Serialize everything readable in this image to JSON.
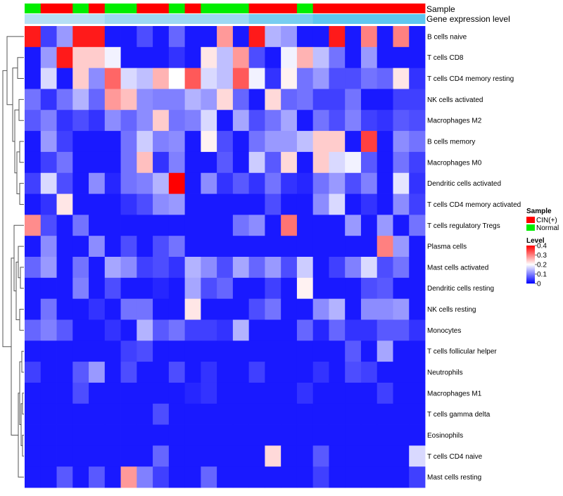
{
  "chart_data": {
    "type": "heatmap",
    "title": "",
    "annotation_tracks": [
      {
        "key": "sample",
        "label": "Sample"
      },
      {
        "key": "level",
        "label": "Gene expression level"
      }
    ],
    "sample_groups": [
      "N",
      "C",
      "C",
      "N",
      "C",
      "N",
      "N",
      "C",
      "C",
      "N",
      "C",
      "N",
      "N",
      "N",
      "C",
      "C",
      "C",
      "N",
      "C",
      "C",
      "C",
      "C",
      "C",
      "C",
      "C"
    ],
    "rows": [
      "B cells naive",
      "T cells CD8",
      "T cells CD4 memory resting",
      "NK cells activated",
      "Macrophages M2",
      "B cells memory",
      "Macrophages M0",
      "Dendritic cells activated",
      "T cells CD4 memory activated",
      "T cells regulatory  Tregs",
      "Plasma cells",
      "Mast cells activated",
      "Dendritic cells resting",
      "NK cells resting",
      "Monocytes",
      "T cells follicular helper",
      "Neutrophils",
      "Macrophages M1",
      "T cells gamma delta",
      "Eosinophils",
      "T cells CD4 naive",
      "Mast cells resting"
    ],
    "values": [
      [
        0.38,
        0.05,
        0.12,
        0.38,
        0.38,
        0.02,
        0.02,
        0.06,
        0.02,
        0.08,
        0.02,
        0.02,
        0.28,
        0.02,
        0.38,
        0.14,
        0.12,
        0.02,
        0.02,
        0.38,
        0.02,
        0.3,
        0.02,
        0.3,
        0.02
      ],
      [
        0.02,
        0.12,
        0.38,
        0.24,
        0.24,
        0.19,
        0.02,
        0.02,
        0.02,
        0.04,
        0.02,
        0.22,
        0.15,
        0.28,
        0.06,
        0.02,
        0.19,
        0.26,
        0.15,
        0.09,
        0.02,
        0.12,
        0.02,
        0.02,
        0.02
      ],
      [
        0.02,
        0.17,
        0.02,
        0.24,
        0.11,
        0.32,
        0.17,
        0.15,
        0.26,
        0.2,
        0.33,
        0.17,
        0.15,
        0.33,
        0.19,
        0.04,
        0.21,
        0.09,
        0.12,
        0.06,
        0.06,
        0.09,
        0.08,
        0.22,
        0.04
      ],
      [
        0.09,
        0.04,
        0.09,
        0.14,
        0.08,
        0.28,
        0.25,
        0.11,
        0.1,
        0.1,
        0.14,
        0.12,
        0.23,
        0.08,
        0.02,
        0.23,
        0.08,
        0.09,
        0.05,
        0.05,
        0.09,
        0.02,
        0.02,
        0.05,
        0.05
      ],
      [
        0.07,
        0.1,
        0.04,
        0.06,
        0.04,
        0.11,
        0.08,
        0.11,
        0.24,
        0.09,
        0.1,
        0.17,
        0.02,
        0.13,
        0.06,
        0.09,
        0.13,
        0.02,
        0.09,
        0.06,
        0.1,
        0.05,
        0.04,
        0.07,
        0.06
      ],
      [
        0.02,
        0.12,
        0.05,
        0.02,
        0.02,
        0.02,
        0.09,
        0.16,
        0.1,
        0.11,
        0.02,
        0.21,
        0.06,
        0.02,
        0.09,
        0.12,
        0.12,
        0.15,
        0.24,
        0.24,
        0.02,
        0.35,
        0.02,
        0.11,
        0.09
      ],
      [
        0.02,
        0.05,
        0.09,
        0.02,
        0.02,
        0.02,
        0.09,
        0.25,
        0.04,
        0.1,
        0.02,
        0.02,
        0.07,
        0.02,
        0.16,
        0.07,
        0.23,
        0.02,
        0.24,
        0.17,
        0.19,
        0.07,
        0.02,
        0.09,
        0.05
      ],
      [
        0.05,
        0.17,
        0.06,
        0.02,
        0.11,
        0.03,
        0.09,
        0.1,
        0.14,
        0.4,
        0.02,
        0.11,
        0.04,
        0.07,
        0.04,
        0.09,
        0.04,
        0.03,
        0.09,
        0.12,
        0.06,
        0.1,
        0.02,
        0.18,
        0.04
      ],
      [
        0.02,
        0.04,
        0.22,
        0.02,
        0.02,
        0.02,
        0.04,
        0.06,
        0.11,
        0.12,
        0.02,
        0.02,
        0.02,
        0.02,
        0.02,
        0.06,
        0.02,
        0.02,
        0.11,
        0.17,
        0.02,
        0.04,
        0.02,
        0.11,
        0.05
      ],
      [
        0.29,
        0.06,
        0.02,
        0.09,
        0.02,
        0.02,
        0.02,
        0.02,
        0.02,
        0.02,
        0.02,
        0.02,
        0.02,
        0.09,
        0.11,
        0.02,
        0.31,
        0.02,
        0.02,
        0.02,
        0.12,
        0.02,
        0.12,
        0.02,
        0.09
      ],
      [
        0.02,
        0.11,
        0.02,
        0.02,
        0.11,
        0.02,
        0.06,
        0.02,
        0.06,
        0.09,
        0.02,
        0.02,
        0.02,
        0.02,
        0.02,
        0.02,
        0.02,
        0.02,
        0.02,
        0.02,
        0.02,
        0.02,
        0.3,
        0.12,
        0.02
      ],
      [
        0.08,
        0.12,
        0.02,
        0.09,
        0.02,
        0.13,
        0.11,
        0.05,
        0.06,
        0.04,
        0.14,
        0.11,
        0.06,
        0.13,
        0.08,
        0.12,
        0.06,
        0.16,
        0.02,
        0.05,
        0.1,
        0.17,
        0.06,
        0.09,
        0.02
      ],
      [
        0.02,
        0.02,
        0.02,
        0.1,
        0.02,
        0.06,
        0.02,
        0.02,
        0.03,
        0.02,
        0.13,
        0.06,
        0.08,
        0.02,
        0.02,
        0.05,
        0.02,
        0.21,
        0.02,
        0.02,
        0.02,
        0.06,
        0.07,
        0.02,
        0.02
      ],
      [
        0.02,
        0.09,
        0.02,
        0.02,
        0.04,
        0.02,
        0.09,
        0.09,
        0.02,
        0.02,
        0.22,
        0.02,
        0.02,
        0.02,
        0.06,
        0.09,
        0.02,
        0.02,
        0.11,
        0.14,
        0.02,
        0.11,
        0.11,
        0.12,
        0.02
      ],
      [
        0.08,
        0.1,
        0.07,
        0.02,
        0.02,
        0.04,
        0.02,
        0.14,
        0.07,
        0.09,
        0.05,
        0.05,
        0.04,
        0.14,
        0.02,
        0.02,
        0.02,
        0.08,
        0.03,
        0.08,
        0.04,
        0.04,
        0.07,
        0.07,
        0.04
      ],
      [
        0.02,
        0.02,
        0.02,
        0.02,
        0.02,
        0.02,
        0.05,
        0.06,
        0.02,
        0.02,
        0.02,
        0.02,
        0.02,
        0.02,
        0.02,
        0.02,
        0.02,
        0.02,
        0.02,
        0.02,
        0.07,
        0.02,
        0.13,
        0.02,
        0.02
      ],
      [
        0.05,
        0.02,
        0.02,
        0.07,
        0.12,
        0.02,
        0.06,
        0.02,
        0.02,
        0.06,
        0.02,
        0.04,
        0.02,
        0.02,
        0.05,
        0.02,
        0.02,
        0.02,
        0.04,
        0.02,
        0.06,
        0.05,
        0.02,
        0.02,
        0.02
      ],
      [
        0.02,
        0.02,
        0.02,
        0.06,
        0.02,
        0.02,
        0.02,
        0.02,
        0.02,
        0.02,
        0.03,
        0.04,
        0.02,
        0.02,
        0.02,
        0.02,
        0.02,
        0.04,
        0.02,
        0.02,
        0.02,
        0.02,
        0.05,
        0.02,
        0.02
      ],
      [
        0.02,
        0.02,
        0.02,
        0.02,
        0.02,
        0.02,
        0.02,
        0.02,
        0.06,
        0.02,
        0.02,
        0.02,
        0.02,
        0.02,
        0.02,
        0.02,
        0.02,
        0.02,
        0.02,
        0.02,
        0.02,
        0.02,
        0.02,
        0.02,
        0.02
      ],
      [
        0.02,
        0.02,
        0.02,
        0.02,
        0.02,
        0.02,
        0.02,
        0.02,
        0.02,
        0.02,
        0.02,
        0.02,
        0.02,
        0.02,
        0.02,
        0.02,
        0.02,
        0.02,
        0.02,
        0.02,
        0.02,
        0.02,
        0.02,
        0.02,
        0.02
      ],
      [
        0.02,
        0.02,
        0.02,
        0.02,
        0.02,
        0.02,
        0.02,
        0.02,
        0.08,
        0.02,
        0.02,
        0.02,
        0.02,
        0.02,
        0.02,
        0.23,
        0.02,
        0.02,
        0.07,
        0.02,
        0.02,
        0.02,
        0.02,
        0.02,
        0.17
      ],
      [
        0.02,
        0.02,
        0.07,
        0.02,
        0.07,
        0.02,
        0.28,
        0.1,
        0.05,
        0.02,
        0.02,
        0.08,
        0.02,
        0.02,
        0.02,
        0.02,
        0.02,
        0.02,
        0.05,
        0.02,
        0.02,
        0.02,
        0.02,
        0.02,
        0.05
      ]
    ],
    "level_track": [
      0.05,
      0.05,
      0.05,
      0.05,
      0.05,
      0.07,
      0.07,
      0.07,
      0.07,
      0.07,
      0.07,
      0.07,
      0.07,
      0.07,
      0.1,
      0.1,
      0.1,
      0.1,
      0.12,
      0.12,
      0.12,
      0.12,
      0.12,
      0.12,
      0.12
    ],
    "legend_sample": {
      "title": "Sample",
      "entries": [
        {
          "key": "C",
          "label": "CIN(+)",
          "color": "#ff0000"
        },
        {
          "key": "N",
          "label": "Normal",
          "color": "#00ee00"
        }
      ]
    },
    "legend_level": {
      "title": "Level",
      "ticks": [
        "0.4",
        "0.3",
        "0.2",
        "0.1",
        "0"
      ],
      "tick_values": [
        0.4,
        0.3,
        0.2,
        0.1,
        0
      ],
      "range": [
        0,
        0.4
      ]
    },
    "level_track_colors": [
      "#b6dff5",
      "#5ec6f0"
    ],
    "scale_colors": {
      "low": "#0000ff",
      "mid": "#ffffff",
      "high": "#ff0000"
    },
    "scale_mid": 0.2
  }
}
